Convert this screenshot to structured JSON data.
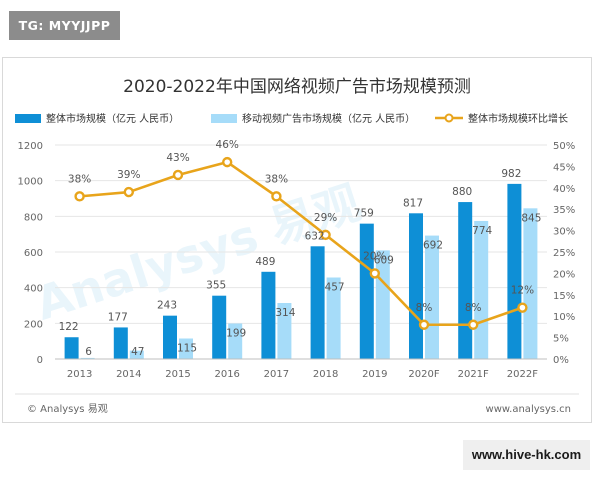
{
  "overlay": {
    "top_left_tag": "TG: MYYJJPP",
    "bottom_right_site": "www.hive-hk.com"
  },
  "footer": {
    "left_credit": "© Analysys 易观",
    "right_url": "www.analysys.cn"
  },
  "watermark": "Analysys 易观",
  "colors": {
    "bar_total": "#0e8fd6",
    "bar_mobile": "#a6dcf9",
    "growth_line": "#e8a41b",
    "grid": "#e6e6e6",
    "axis_text": "#666666",
    "title": "#333333"
  },
  "chart_data": {
    "type": "bar",
    "title": "2020-2022年中国网络视频广告市场规模预测",
    "categories": [
      "2013",
      "2014",
      "2015",
      "2016",
      "2017",
      "2018",
      "2019",
      "2020F",
      "2021F",
      "2022F"
    ],
    "series": [
      {
        "name": "整体市场规模（亿元 人民币）",
        "kind": "bar",
        "axis": "left",
        "values": [
          122,
          177,
          243,
          355,
          489,
          632,
          759,
          817,
          880,
          982
        ],
        "labels": [
          "122",
          "177",
          "243",
          "355",
          "489",
          "632",
          "759",
          "817",
          "880",
          "982"
        ]
      },
      {
        "name": "移动视频广告市场规模（亿元 人民币）",
        "kind": "bar",
        "axis": "left",
        "values": [
          6,
          47,
          115,
          199,
          314,
          457,
          609,
          692,
          774,
          845
        ],
        "labels": [
          "6",
          "47",
          "115",
          "199",
          "314",
          "457",
          "609",
          "692",
          "774",
          "845"
        ]
      },
      {
        "name": "整体市场规模环比增长",
        "kind": "line",
        "axis": "right",
        "values": [
          38,
          39,
          43,
          46,
          38,
          29,
          20,
          8,
          8,
          12
        ],
        "labels": [
          "38%",
          "39%",
          "43%",
          "46%",
          "38%",
          "29%",
          "20%",
          "8%",
          "8%",
          "12%"
        ]
      }
    ],
    "y_left": {
      "min": 0,
      "max": 1200,
      "ticks": [
        "0",
        "200",
        "400",
        "600",
        "800",
        "1000",
        "1200"
      ]
    },
    "y_right": {
      "min": 0,
      "max": 50,
      "ticks": [
        "0%",
        "5%",
        "10%",
        "15%",
        "20%",
        "25%",
        "30%",
        "35%",
        "40%",
        "45%",
        "50%"
      ]
    },
    "grid": true,
    "legend_position": "top"
  }
}
